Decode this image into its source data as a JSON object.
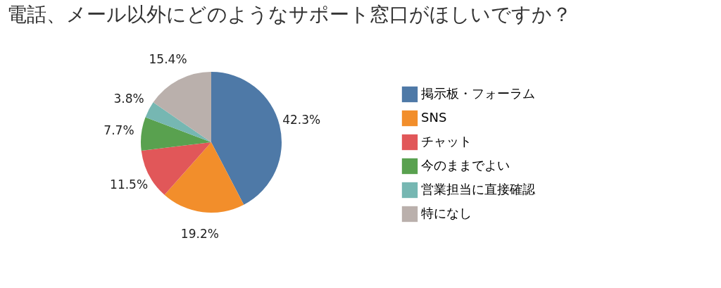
{
  "chart_data": {
    "type": "pie",
    "title": "電話、メール以外にどのようなサポート窓口がほしいですか？",
    "categories": [
      "掲示板・フォーラム",
      "SNS",
      "チャット",
      "今のままでよい",
      "営業担当に直接確認",
      "特になし"
    ],
    "values": [
      42.3,
      19.2,
      11.5,
      7.7,
      3.8,
      15.4
    ],
    "colors": [
      "#4e79a7",
      "#f28e2b",
      "#e15759",
      "#59a14f",
      "#76b7b2",
      "#bab0ac"
    ],
    "value_labels": [
      "42.3%",
      "19.2%",
      "11.5%",
      "7.7%",
      "3.8%",
      "15.4%"
    ],
    "legend": "right"
  }
}
